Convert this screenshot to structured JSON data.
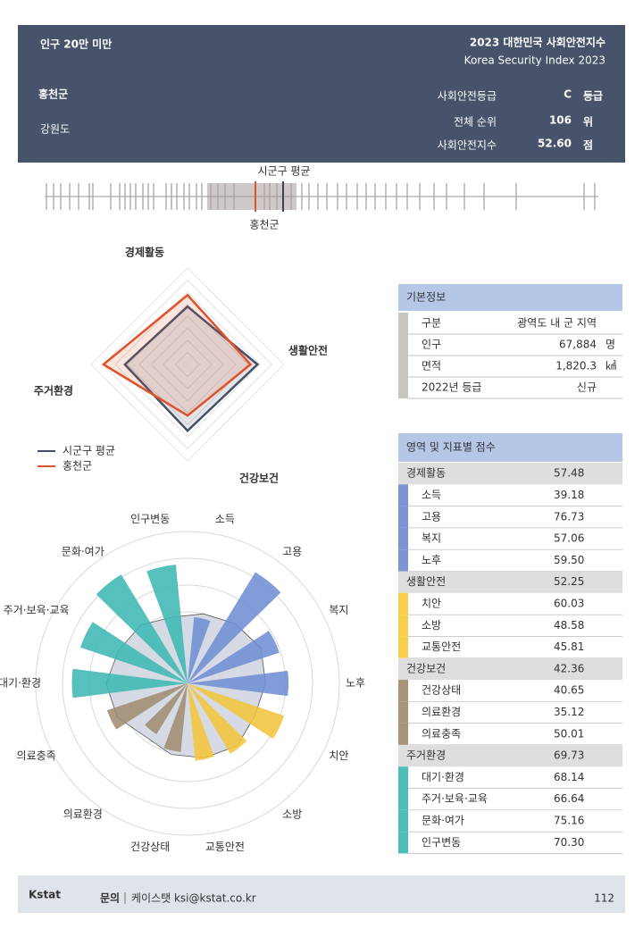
{
  "header": {
    "category": "인구 20만 미만",
    "report_title": "2023 대한민국 사회안전지수",
    "report_subtitle": "Korea Security Index 2023",
    "region": "홍천군",
    "province": "강원도",
    "grade_label": "사회안전등급",
    "grade": "C",
    "grade_unit": "등급",
    "rank_label": "전체 순위",
    "rank": "106",
    "rank_unit": "위",
    "index_label": "사회안전지수",
    "index": "52.60",
    "index_unit": "점"
  },
  "strip": {
    "average_label": "시군구 평균",
    "region_label": "홍천군"
  },
  "chart_data": [
    {
      "type": "radar",
      "categories": [
        "경제활동",
        "생활안전",
        "건강보건",
        "주거환경"
      ],
      "rlim": [
        0,
        80
      ],
      "legend": "lower-left",
      "series": [
        {
          "name": "시군구 평균",
          "color": "#44506a",
          "values": [
            48,
            58,
            55,
            52
          ]
        },
        {
          "name": "홍천군",
          "color": "#e0532a",
          "values": [
            57.48,
            52.25,
            42.36,
            69.73
          ]
        }
      ]
    },
    {
      "type": "polar-bar",
      "rlim": [
        0,
        100
      ],
      "categories": [
        "소득",
        "고용",
        "복지",
        "노후",
        "치안",
        "소방",
        "교통안전",
        "건강상태",
        "의료환경",
        "의료충족",
        "대기·환경",
        "주거·보육·교육",
        "문화·여가",
        "인구변동"
      ],
      "values": [
        39.18,
        76.73,
        57.06,
        59.5,
        60.03,
        48.58,
        45.81,
        40.65,
        35.12,
        50.01,
        68.14,
        66.64,
        75.16,
        70.3
      ],
      "colors": [
        "#6f8ed3",
        "#6f8ed3",
        "#6f8ed3",
        "#6f8ed3",
        "#f2c53d",
        "#f2c53d",
        "#f2c53d",
        "#a08c72",
        "#a08c72",
        "#a08c72",
        "#3fb8b3",
        "#3fb8b3",
        "#3fb8b3",
        "#3fb8b3"
      ],
      "reference_values": [
        42,
        45,
        48,
        46,
        44,
        47,
        45,
        43,
        40,
        46,
        48,
        45,
        44,
        40
      ]
    }
  ],
  "basic_info": {
    "title": "기본정보",
    "rows": [
      [
        "구분",
        "광역도 내 군 지역"
      ],
      [
        "인구",
        "67,884",
        "명"
      ],
      [
        "면적",
        "1,820.3",
        "㎢"
      ],
      [
        "2022년 등급",
        "신규"
      ]
    ]
  },
  "scores": {
    "title": "영역 및 지표별 점수",
    "groups": [
      {
        "name": "경제활동",
        "score": "57.48",
        "color": "#7b95d4",
        "items": [
          [
            "소득",
            "39.18"
          ],
          [
            "고용",
            "76.73"
          ],
          [
            "복지",
            "57.06"
          ],
          [
            "노후",
            "59.50"
          ]
        ]
      },
      {
        "name": "생활안전",
        "score": "52.25",
        "color": "#f6d04d",
        "items": [
          [
            "치안",
            "60.03"
          ],
          [
            "소방",
            "48.58"
          ],
          [
            "교통안전",
            "45.81"
          ]
        ]
      },
      {
        "name": "건강보건",
        "score": "42.36",
        "color": "#a89479",
        "items": [
          [
            "건강상태",
            "40.65"
          ],
          [
            "의료환경",
            "35.12"
          ],
          [
            "의료충족",
            "50.01"
          ]
        ]
      },
      {
        "name": "주거환경",
        "score": "69.73",
        "color": "#4dbfba",
        "items": [
          [
            "대기·환경",
            "68.14"
          ],
          [
            "주거·보육·교육",
            "66.64"
          ],
          [
            "문화·여가",
            "75.16"
          ],
          [
            "인구변동",
            "70.30"
          ]
        ]
      }
    ]
  },
  "footer": {
    "logo": "Kstat",
    "contact_label": "문의",
    "contact": "케이스탯 ksi@kstat.co.kr",
    "page": "112"
  }
}
